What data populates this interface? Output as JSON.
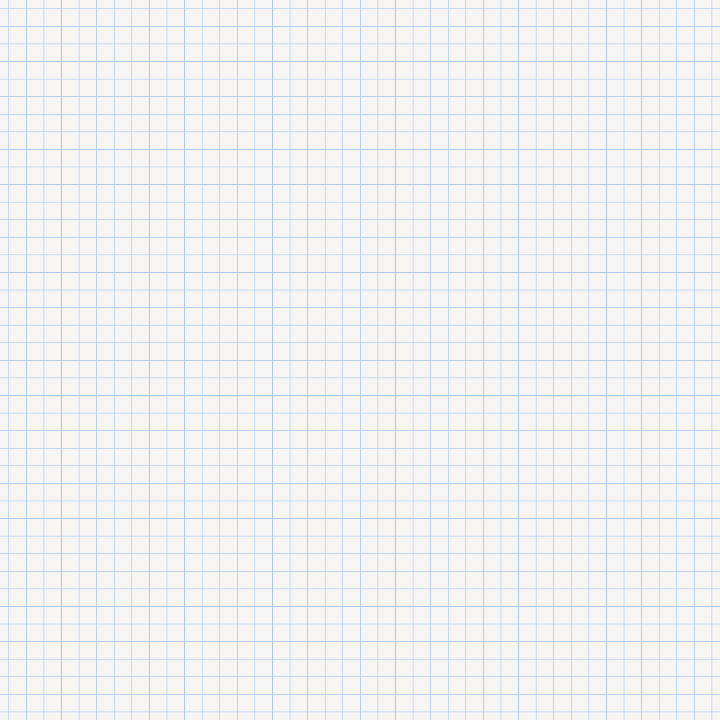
{
  "paper": {
    "background_color": "#f6f5f4",
    "grid_line_color": "#a9c6e6"
  }
}
